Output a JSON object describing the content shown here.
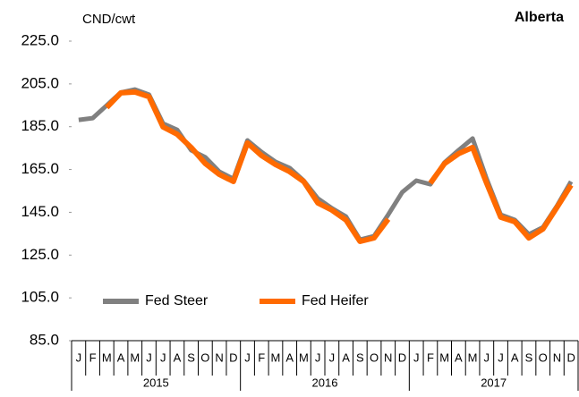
{
  "chart_data": {
    "type": "line",
    "y_label": "CND/cwt",
    "annotation": "Alberta",
    "categories": [
      "J",
      "F",
      "M",
      "A",
      "M",
      "J",
      "J",
      "A",
      "S",
      "O",
      "N",
      "D",
      "J",
      "F",
      "M",
      "A",
      "M",
      "J",
      "J",
      "A",
      "S",
      "O",
      "N",
      "D",
      "J",
      "F",
      "M",
      "A",
      "M",
      "J",
      "J",
      "A",
      "S",
      "O",
      "N",
      "D"
    ],
    "x_groups": [
      "2015",
      "2016",
      "2017"
    ],
    "series": [
      {
        "name": "Fed Steer",
        "color": "#808080",
        "values": [
          188.2,
          189,
          195,
          201,
          202.4,
          200,
          186.5,
          183.6,
          174,
          170.7,
          164,
          160.6,
          178.6,
          173.2,
          168.6,
          165.7,
          159.8,
          151.5,
          146.9,
          143,
          132.2,
          133.9,
          143.9,
          154.4,
          159.8,
          158.1,
          168.2,
          174,
          179.5,
          160.6,
          143.9,
          141.4,
          134.7,
          138,
          148,
          159.4
        ]
      },
      {
        "name": "Fed Heifer",
        "color": "#ff6a00",
        "values": [
          null,
          null,
          194,
          200.8,
          201.2,
          199,
          184.9,
          181.5,
          175.3,
          167.8,
          162.7,
          159.4,
          177.4,
          171.5,
          167.3,
          164,
          159.4,
          149.4,
          146,
          141.4,
          131.4,
          133,
          141.8,
          null,
          null,
          158.6,
          167.7,
          172.4,
          175.3,
          158.6,
          142.7,
          140.6,
          133,
          137.2,
          147.3,
          157.7
        ]
      }
    ],
    "ylim": [
      85,
      225
    ],
    "yticks": [
      {
        "value": 85,
        "label": "85.0"
      },
      {
        "value": 105,
        "label": "105.0"
      },
      {
        "value": 125,
        "label": "125.0"
      },
      {
        "value": 145,
        "label": "145.0"
      },
      {
        "value": 165,
        "label": "165.0"
      },
      {
        "value": 185,
        "label": "185.0"
      },
      {
        "value": 205,
        "label": "205.0"
      },
      {
        "value": 225,
        "label": "225.0"
      }
    ]
  }
}
